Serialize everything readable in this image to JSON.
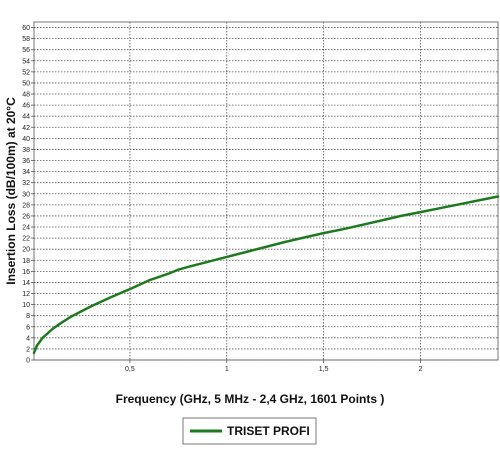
{
  "chart_data": {
    "type": "line",
    "title": "",
    "xlabel": "Frequency (GHz, 5 MHz - 2,4 GHz, 1601 Points )",
    "ylabel": "Insertion Loss (dB/100m) at 20°C",
    "xlim": [
      0.005,
      2.4
    ],
    "ylim": [
      0,
      61
    ],
    "grid": true,
    "legend_position": "bottom-center",
    "x_ticks": [
      0.5,
      1,
      1.5,
      2
    ],
    "x_tick_labels": [
      "0,5",
      "1",
      "1,5",
      "2"
    ],
    "y_ticks": [
      0,
      2,
      4,
      6,
      8,
      10,
      12,
      14,
      16,
      18,
      20,
      22,
      24,
      26,
      28,
      30,
      32,
      34,
      36,
      38,
      40,
      42,
      44,
      46,
      48,
      50,
      52,
      54,
      56,
      58,
      60
    ],
    "y_tick_labels": [
      "0",
      "2",
      "4",
      "6",
      "8",
      "10",
      "12",
      "14",
      "16",
      "18",
      "20",
      "22",
      "24",
      "26",
      "28",
      "30",
      "32",
      "34",
      "36",
      "38",
      "40",
      "42",
      "44",
      "46",
      "48",
      "50",
      "52",
      "54",
      "56",
      "58",
      "60"
    ],
    "series": [
      {
        "name": "TRISET PROFI",
        "color": "#1f7a1f",
        "x": [
          0.005,
          0.02,
          0.05,
          0.1,
          0.15,
          0.2,
          0.3,
          0.4,
          0.5,
          0.6,
          0.65,
          0.7,
          0.75,
          0.8,
          0.9,
          1.0,
          1.1,
          1.2,
          1.3,
          1.4,
          1.5,
          1.6,
          1.7,
          1.8,
          1.9,
          2.0,
          2.1,
          2.2,
          2.3,
          2.4
        ],
        "y": [
          1.3,
          2.6,
          4.0,
          5.6,
          6.8,
          7.9,
          9.7,
          11.3,
          12.8,
          14.4,
          15.0,
          15.6,
          16.3,
          16.8,
          17.7,
          18.6,
          19.5,
          20.4,
          21.3,
          22.1,
          22.9,
          23.6,
          24.4,
          25.2,
          26.0,
          26.7,
          27.4,
          28.1,
          28.8,
          29.5
        ]
      }
    ]
  }
}
